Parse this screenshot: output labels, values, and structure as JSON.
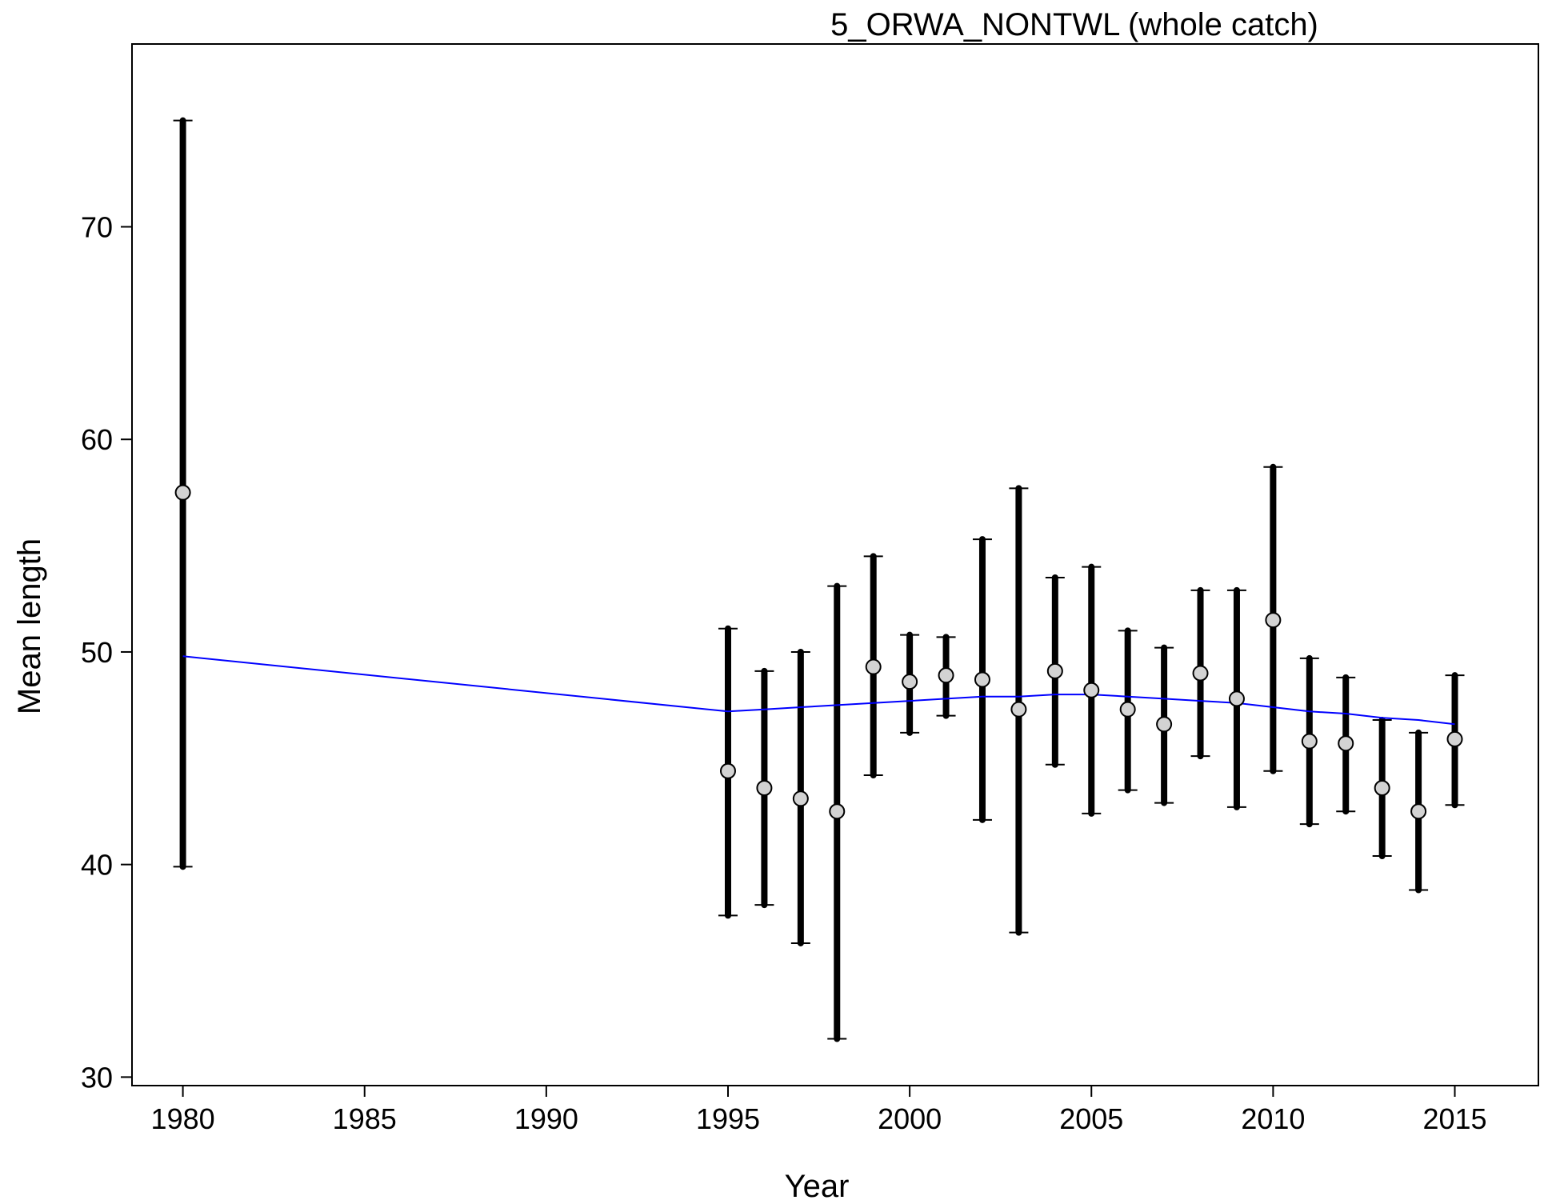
{
  "chart_data": {
    "type": "scatter",
    "title": "5_ORWA_NONTWL (whole catch)",
    "xlabel": "Year",
    "ylabel": "Mean length",
    "xlim": [
      1978.6,
      2017.3
    ],
    "ylim": [
      29.6,
      78.6
    ],
    "x_ticks": [
      1980,
      1985,
      1990,
      1995,
      2000,
      2005,
      2010,
      2015
    ],
    "y_ticks": [
      30,
      40,
      50,
      60,
      70
    ],
    "x_tick_labels": [
      "1980",
      "1985",
      "1990",
      "1995",
      "2000",
      "2005",
      "2010",
      "2015"
    ],
    "y_tick_labels": [
      "30",
      "40",
      "50",
      "60",
      "70"
    ],
    "grid": false,
    "series": [
      {
        "kind": "observed",
        "style": "points with error bars",
        "marker_fill": "#d3d3d3",
        "bar_color": "#000000",
        "x": [
          1980,
          1995,
          1996,
          1997,
          1998,
          1999,
          2000,
          2001,
          2002,
          2003,
          2004,
          2005,
          2006,
          2007,
          2008,
          2009,
          2010,
          2011,
          2012,
          2013,
          2014,
          2015
        ],
        "y": [
          57.5,
          44.4,
          43.6,
          43.1,
          42.5,
          49.3,
          48.6,
          48.9,
          48.7,
          47.3,
          49.1,
          48.2,
          47.3,
          46.6,
          49.0,
          47.8,
          51.5,
          45.8,
          45.7,
          43.6,
          42.5,
          45.9
        ],
        "upper": [
          75.0,
          51.1,
          49.1,
          50.0,
          53.1,
          54.5,
          50.8,
          50.7,
          55.3,
          57.7,
          53.5,
          54.0,
          51.0,
          50.2,
          52.9,
          52.9,
          58.7,
          49.7,
          48.8,
          46.8,
          46.2,
          48.9
        ],
        "lower": [
          39.9,
          37.6,
          38.1,
          36.3,
          31.8,
          44.2,
          46.2,
          47.0,
          42.1,
          36.8,
          44.7,
          42.4,
          43.5,
          42.9,
          45.1,
          42.7,
          44.4,
          41.9,
          42.5,
          40.4,
          38.8,
          42.8
        ]
      },
      {
        "kind": "expected",
        "style": "line",
        "color": "#0000ff",
        "x": [
          1980,
          1995,
          1996,
          1997,
          1998,
          1999,
          2000,
          2001,
          2002,
          2003,
          2004,
          2005,
          2006,
          2007,
          2008,
          2009,
          2010,
          2011,
          2012,
          2013,
          2014,
          2015
        ],
        "y": [
          49.8,
          47.2,
          47.3,
          47.4,
          47.5,
          47.6,
          47.7,
          47.8,
          47.9,
          47.9,
          48.0,
          48.0,
          47.9,
          47.8,
          47.7,
          47.6,
          47.4,
          47.2,
          47.1,
          46.9,
          46.8,
          46.6
        ]
      }
    ]
  }
}
